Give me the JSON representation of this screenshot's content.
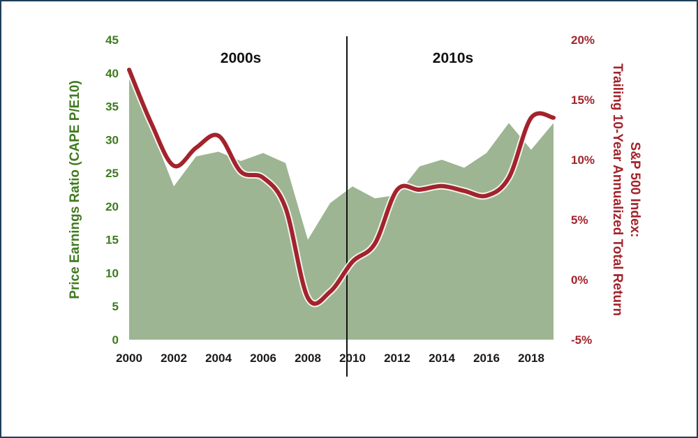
{
  "chart_data": {
    "type": "line",
    "title": "",
    "x": [
      2000,
      2001,
      2002,
      2003,
      2004,
      2005,
      2006,
      2007,
      2008,
      2009,
      2010,
      2011,
      2012,
      2013,
      2014,
      2015,
      2016,
      2017,
      2018,
      2019
    ],
    "x_ticks": [
      "2000",
      "2002",
      "2004",
      "2006",
      "2008",
      "2010",
      "2012",
      "2014",
      "2016",
      "2018"
    ],
    "xlim": [
      2000,
      2020
    ],
    "y_left": {
      "label": "Price Earnings Ratio (CAPE P/E10)",
      "ylim": [
        0,
        45
      ],
      "ticks": [
        "0",
        "5",
        "10",
        "15",
        "20",
        "25",
        "30",
        "35",
        "40",
        "45"
      ],
      "color": "#3f7a1f"
    },
    "y_right": {
      "label_line1": "S&P 500 Index:",
      "label_line2": "Trailing 10-Year Annualized Total Return",
      "ylim": [
        -5,
        20
      ],
      "ticks": [
        "-5%",
        "0%",
        "5%",
        "10%",
        "15%",
        "20%"
      ],
      "color": "#a3232c"
    },
    "series": [
      {
        "axis": "left",
        "kind": "area",
        "color": "#9db592",
        "x": [
          2000,
          2001,
          2002,
          2003,
          2004,
          2005,
          2006,
          2007,
          2008,
          2009,
          2010,
          2011,
          2012,
          2013,
          2014,
          2015,
          2016,
          2017,
          2018,
          2019
        ],
        "values": [
          39.5,
          31.5,
          23.0,
          27.5,
          28.2,
          26.8,
          28.0,
          26.5,
          15.0,
          20.5,
          23.0,
          21.2,
          21.7,
          26.0,
          27.0,
          25.8,
          28.0,
          32.5,
          28.5,
          32.5
        ]
      },
      {
        "axis": "right",
        "kind": "line",
        "color": "#a3232c",
        "x": [
          2000,
          2001,
          2002,
          2003,
          2004,
          2005,
          2006,
          2007,
          2008,
          2009,
          2010,
          2011,
          2012,
          2013,
          2014,
          2015,
          2016,
          2017,
          2018,
          2019
        ],
        "values": [
          17.5,
          13.0,
          9.5,
          11.0,
          12.0,
          9.0,
          8.5,
          6.0,
          -1.5,
          -1.0,
          1.5,
          3.0,
          7.5,
          7.5,
          7.8,
          7.4,
          7.0,
          8.5,
          13.5,
          13.5
        ]
      }
    ],
    "annotations": {
      "divider_x": 2009.75,
      "era_left": {
        "text": "2000s",
        "x": 2005
      },
      "era_right": {
        "text": "2010s",
        "x": 2014.5
      }
    },
    "grid": false,
    "legend": "none"
  }
}
